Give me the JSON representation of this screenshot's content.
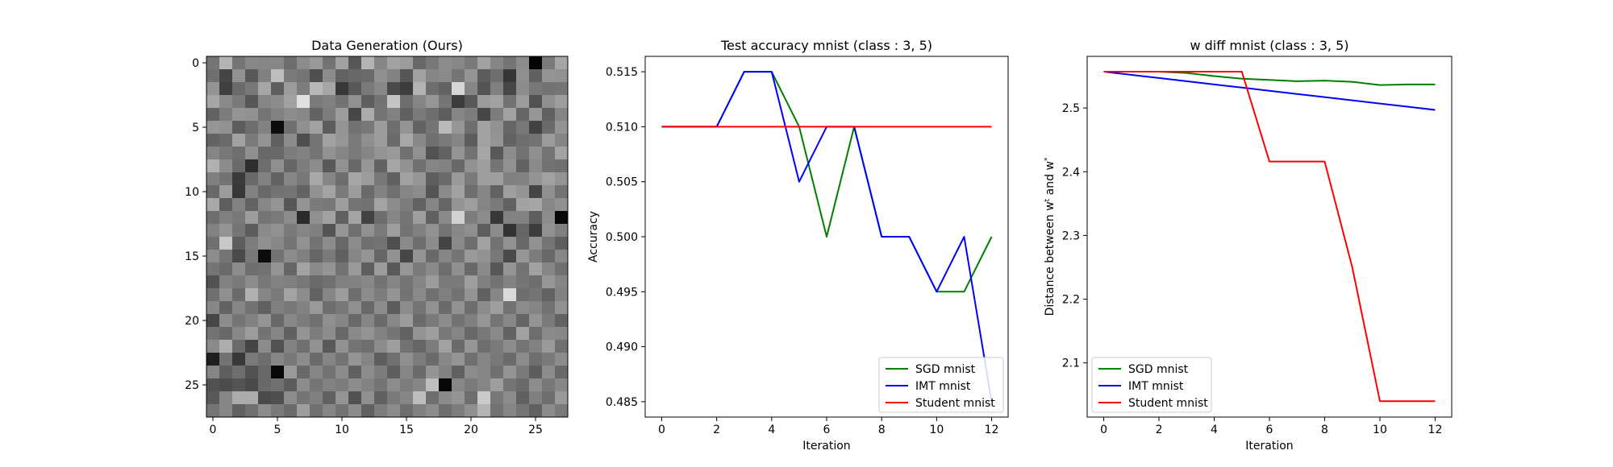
{
  "chart_data": [
    {
      "type": "heatmap",
      "title": "Data Generation (Ours)",
      "colormap": "gray",
      "rows": 28,
      "cols": 28,
      "vmin": 0,
      "vmax": 1,
      "xticks": [
        0,
        5,
        10,
        15,
        20,
        25
      ],
      "yticks": [
        0,
        5,
        10,
        15,
        20,
        25
      ],
      "values": [
        [
          0.46,
          0.7,
          0.46,
          0.53,
          0.52,
          0.53,
          0.43,
          0.55,
          0.6,
          0.45,
          0.63,
          0.34,
          0.7,
          0.52,
          0.63,
          0.61,
          0.41,
          0.47,
          0.55,
          0.53,
          0.48,
          0.63,
          0.52,
          0.46,
          0.55,
          0.02,
          0.48,
          0.65
        ],
        [
          0.44,
          0.27,
          0.57,
          0.35,
          0.5,
          0.74,
          0.48,
          0.46,
          0.31,
          0.55,
          0.39,
          0.41,
          0.42,
          0.56,
          0.51,
          0.34,
          0.63,
          0.52,
          0.54,
          0.46,
          0.58,
          0.36,
          0.43,
          0.21,
          0.56,
          0.38,
          0.58,
          0.57
        ],
        [
          0.58,
          0.25,
          0.42,
          0.47,
          0.65,
          0.37,
          0.61,
          0.49,
          0.72,
          0.65,
          0.22,
          0.35,
          0.48,
          0.53,
          0.29,
          0.24,
          0.7,
          0.43,
          0.39,
          0.84,
          0.52,
          0.33,
          0.5,
          0.28,
          0.55,
          0.47,
          0.45,
          0.46
        ],
        [
          0.65,
          0.54,
          0.48,
          0.34,
          0.52,
          0.55,
          0.63,
          0.88,
          0.48,
          0.5,
          0.45,
          0.57,
          0.37,
          0.45,
          0.77,
          0.43,
          0.52,
          0.59,
          0.46,
          0.24,
          0.35,
          0.61,
          0.63,
          0.45,
          0.61,
          0.32,
          0.56,
          0.62
        ],
        [
          0.39,
          0.49,
          0.58,
          0.57,
          0.46,
          0.51,
          0.55,
          0.53,
          0.39,
          0.49,
          0.61,
          0.28,
          0.67,
          0.46,
          0.51,
          0.38,
          0.48,
          0.43,
          0.37,
          0.52,
          0.49,
          0.28,
          0.49,
          0.63,
          0.4,
          0.59,
          0.38,
          0.52
        ],
        [
          0.59,
          0.57,
          0.36,
          0.43,
          0.51,
          0.05,
          0.44,
          0.56,
          0.63,
          0.36,
          0.58,
          0.45,
          0.47,
          0.61,
          0.43,
          0.58,
          0.39,
          0.46,
          0.73,
          0.59,
          0.43,
          0.63,
          0.57,
          0.4,
          0.47,
          0.26,
          0.42,
          0.58
        ],
        [
          0.39,
          0.42,
          0.63,
          0.48,
          0.58,
          0.38,
          0.55,
          0.31,
          0.46,
          0.63,
          0.59,
          0.48,
          0.56,
          0.61,
          0.42,
          0.66,
          0.53,
          0.44,
          0.48,
          0.52,
          0.36,
          0.63,
          0.58,
          0.39,
          0.43,
          0.45,
          0.61,
          0.52
        ],
        [
          0.52,
          0.47,
          0.43,
          0.56,
          0.41,
          0.41,
          0.49,
          0.51,
          0.46,
          0.57,
          0.52,
          0.48,
          0.52,
          0.58,
          0.6,
          0.44,
          0.57,
          0.32,
          0.39,
          0.58,
          0.45,
          0.65,
          0.35,
          0.55,
          0.45,
          0.56,
          0.46,
          0.64
        ],
        [
          0.69,
          0.55,
          0.42,
          0.18,
          0.43,
          0.56,
          0.4,
          0.49,
          0.55,
          0.35,
          0.57,
          0.41,
          0.59,
          0.39,
          0.65,
          0.57,
          0.44,
          0.52,
          0.51,
          0.41,
          0.57,
          0.62,
          0.46,
          0.57,
          0.39,
          0.54,
          0.45,
          0.44
        ],
        [
          0.5,
          0.45,
          0.23,
          0.41,
          0.51,
          0.39,
          0.52,
          0.47,
          0.66,
          0.52,
          0.43,
          0.65,
          0.61,
          0.47,
          0.38,
          0.63,
          0.59,
          0.37,
          0.42,
          0.6,
          0.48,
          0.62,
          0.62,
          0.5,
          0.51,
          0.58,
          0.63,
          0.58
        ],
        [
          0.41,
          0.61,
          0.22,
          0.51,
          0.41,
          0.45,
          0.46,
          0.39,
          0.57,
          0.64,
          0.48,
          0.61,
          0.42,
          0.51,
          0.44,
          0.52,
          0.55,
          0.33,
          0.54,
          0.63,
          0.43,
          0.52,
          0.39,
          0.62,
          0.58,
          0.27,
          0.56,
          0.45
        ],
        [
          0.66,
          0.37,
          0.51,
          0.39,
          0.53,
          0.58,
          0.34,
          0.58,
          0.48,
          0.47,
          0.62,
          0.46,
          0.45,
          0.64,
          0.55,
          0.49,
          0.39,
          0.52,
          0.4,
          0.58,
          0.62,
          0.52,
          0.48,
          0.39,
          0.63,
          0.65,
          0.53,
          0.57
        ],
        [
          0.43,
          0.5,
          0.47,
          0.61,
          0.46,
          0.48,
          0.55,
          0.17,
          0.56,
          0.63,
          0.38,
          0.64,
          0.26,
          0.43,
          0.52,
          0.46,
          0.62,
          0.38,
          0.54,
          0.82,
          0.49,
          0.55,
          0.22,
          0.51,
          0.51,
          0.37,
          0.55,
          0.03
        ],
        [
          0.51,
          0.58,
          0.46,
          0.36,
          0.54,
          0.57,
          0.48,
          0.52,
          0.5,
          0.33,
          0.59,
          0.44,
          0.57,
          0.48,
          0.62,
          0.45,
          0.5,
          0.57,
          0.46,
          0.53,
          0.56,
          0.37,
          0.55,
          0.2,
          0.4,
          0.24,
          0.57,
          0.5
        ],
        [
          0.44,
          0.78,
          0.37,
          0.49,
          0.56,
          0.53,
          0.46,
          0.57,
          0.45,
          0.55,
          0.41,
          0.55,
          0.44,
          0.45,
          0.31,
          0.54,
          0.43,
          0.55,
          0.27,
          0.54,
          0.43,
          0.63,
          0.45,
          0.57,
          0.41,
          0.57,
          0.46,
          0.37
        ],
        [
          0.55,
          0.46,
          0.29,
          0.47,
          0.05,
          0.45,
          0.55,
          0.5,
          0.4,
          0.48,
          0.38,
          0.52,
          0.58,
          0.4,
          0.57,
          0.28,
          0.58,
          0.41,
          0.52,
          0.46,
          0.6,
          0.57,
          0.47,
          0.29,
          0.59,
          0.49,
          0.41,
          0.53
        ],
        [
          0.46,
          0.42,
          0.55,
          0.43,
          0.45,
          0.58,
          0.4,
          0.64,
          0.54,
          0.58,
          0.45,
          0.6,
          0.37,
          0.61,
          0.35,
          0.59,
          0.48,
          0.54,
          0.43,
          0.56,
          0.41,
          0.54,
          0.34,
          0.58,
          0.45,
          0.63,
          0.52,
          0.44
        ],
        [
          0.32,
          0.51,
          0.48,
          0.55,
          0.47,
          0.51,
          0.5,
          0.47,
          0.42,
          0.44,
          0.5,
          0.51,
          0.53,
          0.45,
          0.52,
          0.46,
          0.52,
          0.61,
          0.48,
          0.48,
          0.62,
          0.5,
          0.45,
          0.51,
          0.46,
          0.43,
          0.59,
          0.52
        ],
        [
          0.44,
          0.56,
          0.42,
          0.69,
          0.52,
          0.48,
          0.64,
          0.55,
          0.39,
          0.52,
          0.61,
          0.43,
          0.55,
          0.49,
          0.58,
          0.45,
          0.54,
          0.44,
          0.5,
          0.45,
          0.58,
          0.38,
          0.52,
          0.85,
          0.43,
          0.46,
          0.39,
          0.51
        ],
        [
          0.53,
          0.39,
          0.52,
          0.45,
          0.38,
          0.5,
          0.47,
          0.51,
          0.6,
          0.43,
          0.47,
          0.56,
          0.41,
          0.55,
          0.36,
          0.55,
          0.46,
          0.57,
          0.42,
          0.57,
          0.43,
          0.55,
          0.62,
          0.45,
          0.55,
          0.52,
          0.45,
          0.57
        ],
        [
          0.28,
          0.55,
          0.46,
          0.51,
          0.58,
          0.41,
          0.53,
          0.49,
          0.44,
          0.56,
          0.52,
          0.41,
          0.52,
          0.42,
          0.53,
          0.61,
          0.42,
          0.48,
          0.55,
          0.45,
          0.5,
          0.59,
          0.46,
          0.53,
          0.4,
          0.58,
          0.48,
          0.39
        ],
        [
          0.45,
          0.41,
          0.53,
          0.61,
          0.45,
          0.52,
          0.38,
          0.58,
          0.49,
          0.55,
          0.41,
          0.54,
          0.58,
          0.51,
          0.46,
          0.39,
          0.58,
          0.62,
          0.47,
          0.52,
          0.41,
          0.47,
          0.54,
          0.39,
          0.63,
          0.43,
          0.54,
          0.53
        ],
        [
          0.54,
          0.68,
          0.42,
          0.27,
          0.55,
          0.32,
          0.51,
          0.44,
          0.57,
          0.35,
          0.57,
          0.46,
          0.43,
          0.55,
          0.62,
          0.45,
          0.4,
          0.49,
          0.63,
          0.42,
          0.59,
          0.43,
          0.48,
          0.55,
          0.46,
          0.51,
          0.6,
          0.44
        ],
        [
          0.12,
          0.45,
          0.22,
          0.48,
          0.43,
          0.52,
          0.47,
          0.55,
          0.42,
          0.52,
          0.45,
          0.58,
          0.52,
          0.37,
          0.44,
          0.56,
          0.49,
          0.42,
          0.53,
          0.58,
          0.44,
          0.52,
          0.47,
          0.42,
          0.55,
          0.43,
          0.48,
          0.55
        ],
        [
          0.52,
          0.37,
          0.43,
          0.32,
          0.41,
          0.03,
          0.6,
          0.41,
          0.52,
          0.45,
          0.55,
          0.38,
          0.55,
          0.49,
          0.37,
          0.52,
          0.42,
          0.58,
          0.51,
          0.38,
          0.55,
          0.52,
          0.44,
          0.58,
          0.48,
          0.36,
          0.55,
          0.41
        ],
        [
          0.32,
          0.3,
          0.33,
          0.29,
          0.41,
          0.44,
          0.36,
          0.55,
          0.46,
          0.51,
          0.49,
          0.55,
          0.51,
          0.46,
          0.55,
          0.49,
          0.52,
          0.74,
          0.03,
          0.53,
          0.48,
          0.52,
          0.62,
          0.46,
          0.42,
          0.55,
          0.47,
          0.53
        ],
        [
          0.35,
          0.52,
          0.67,
          0.67,
          0.29,
          0.31,
          0.55,
          0.46,
          0.5,
          0.38,
          0.58,
          0.32,
          0.56,
          0.38,
          0.48,
          0.52,
          0.74,
          0.43,
          0.54,
          0.58,
          0.43,
          0.79,
          0.47,
          0.55,
          0.38,
          0.5,
          0.43,
          0.6
        ],
        [
          0.46,
          0.52,
          0.38,
          0.44,
          0.55,
          0.48,
          0.42,
          0.62,
          0.44,
          0.52,
          0.45,
          0.55,
          0.38,
          0.49,
          0.55,
          0.43,
          0.5,
          0.55,
          0.43,
          0.49,
          0.56,
          0.7,
          0.45,
          0.52,
          0.46,
          0.38,
          0.55,
          0.48
        ]
      ]
    },
    {
      "type": "line",
      "title": "Test accuracy mnist (class : 3, 5)",
      "xlabel": "Iteration",
      "ylabel": "Accuracy",
      "xlim": [
        -0.6,
        12.6
      ],
      "ylim": [
        0.4836,
        0.5164
      ],
      "xticks": [
        0,
        2,
        4,
        6,
        8,
        10,
        12
      ],
      "yticks": [
        0.485,
        0.49,
        0.495,
        0.5,
        0.505,
        0.51,
        0.515
      ],
      "ytick_labels": [
        "0.485",
        "0.490",
        "0.495",
        "0.500",
        "0.505",
        "0.510",
        "0.515"
      ],
      "x": [
        0,
        1,
        2,
        3,
        4,
        5,
        6,
        7,
        8,
        9,
        10,
        11,
        12
      ],
      "legend": "lower right",
      "series": [
        {
          "name": "SGD mnist",
          "color": "#008000",
          "values": [
            0.51,
            0.51,
            0.51,
            0.515,
            0.515,
            0.51,
            0.5,
            0.51,
            0.5,
            0.5,
            0.495,
            0.495,
            0.5
          ]
        },
        {
          "name": "IMT mnist",
          "color": "#0000ff",
          "values": [
            0.51,
            0.51,
            0.51,
            0.515,
            0.515,
            0.505,
            0.51,
            0.51,
            0.5,
            0.5,
            0.495,
            0.5,
            0.485
          ]
        },
        {
          "name": "Student mnist",
          "color": "#ff0000",
          "values": [
            0.51,
            0.51,
            0.51,
            0.51,
            0.51,
            0.51,
            0.51,
            0.51,
            0.51,
            0.51,
            0.51,
            0.51,
            0.51
          ]
        }
      ]
    },
    {
      "type": "line",
      "title": "w diff mnist (class : 3, 5)",
      "xlabel": "Iteration",
      "ylabel": "Distance between w",
      "ylabel_sup1": "t",
      "ylabel_mid": " and w",
      "ylabel_sup2": "*",
      "xlim": [
        -0.6,
        12.6
      ],
      "ylim": [
        2.015,
        2.581
      ],
      "xticks": [
        0,
        2,
        4,
        6,
        8,
        10,
        12
      ],
      "yticks": [
        2.1,
        2.2,
        2.3,
        2.4,
        2.5
      ],
      "ytick_labels": [
        "2.1",
        "2.2",
        "2.3",
        "2.4",
        "2.5"
      ],
      "x": [
        0,
        1,
        2,
        3,
        4,
        5,
        6,
        7,
        8,
        9,
        10,
        11,
        12
      ],
      "legend": "lower left",
      "series": [
        {
          "name": "SGD mnist",
          "color": "#008000",
          "values": [
            2.557,
            2.557,
            2.557,
            2.555,
            2.55,
            2.546,
            2.544,
            2.542,
            2.543,
            2.541,
            2.536,
            2.537,
            2.537
          ]
        },
        {
          "name": "IMT mnist",
          "color": "#0000ff",
          "values": [
            2.557,
            2.552,
            2.547,
            2.542,
            2.537,
            2.532,
            2.527,
            2.522,
            2.517,
            2.512,
            2.507,
            2.502,
            2.497
          ]
        },
        {
          "name": "Student mnist",
          "color": "#ff0000",
          "values": [
            2.557,
            2.557,
            2.557,
            2.557,
            2.557,
            2.557,
            2.416,
            2.416,
            2.416,
            2.25,
            2.04,
            2.04,
            2.04
          ]
        }
      ]
    }
  ]
}
